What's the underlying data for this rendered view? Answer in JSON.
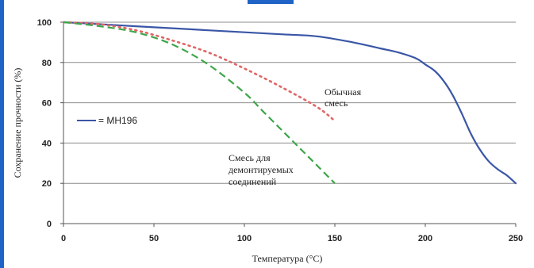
{
  "colors": {
    "accent_border": "#1f63c6",
    "blue_series": "#3a56a6",
    "red_series": "#e06666",
    "green_series": "#3fa64a",
    "grid": "#8c8c8c"
  },
  "chart_data": {
    "type": "line",
    "xlabel": "Температура (°C)",
    "ylabel": "Сохранение прочности (%)",
    "xlim": [
      0,
      250
    ],
    "ylim": [
      0,
      100
    ],
    "xticks": [
      0,
      50,
      100,
      150,
      200,
      250
    ],
    "yticks": [
      0,
      20,
      40,
      60,
      80,
      100
    ],
    "grid": "horizontal",
    "series": [
      {
        "name": "MH196",
        "style": "solid",
        "color": "#3a56a6",
        "x": [
          0,
          20,
          40,
          60,
          80,
          100,
          120,
          140,
          160,
          175,
          185,
          195,
          200,
          205,
          210,
          215,
          220,
          225,
          230,
          235,
          240,
          245,
          250
        ],
        "y": [
          100,
          99,
          98,
          97,
          96,
          95,
          94,
          93,
          90,
          87,
          85,
          82,
          79,
          76,
          71,
          64,
          55,
          45,
          37,
          31,
          27,
          24,
          20
        ]
      },
      {
        "name": "Обычная смесь",
        "style": "dotted",
        "color": "#e06666",
        "x": [
          0,
          20,
          40,
          60,
          80,
          100,
          120,
          140,
          150
        ],
        "y": [
          100,
          99,
          96,
          91,
          85,
          77,
          68,
          58,
          51
        ]
      },
      {
        "name": "Смесь для демонтируемых соединений",
        "style": "dashed",
        "color": "#3fa64a",
        "x": [
          0,
          20,
          40,
          60,
          80,
          100,
          110,
          120,
          130,
          140,
          150
        ],
        "y": [
          100,
          98,
          95,
          89,
          79,
          65,
          56,
          47,
          38,
          29,
          20
        ]
      }
    ],
    "legend": {
      "entry": "= MH196",
      "placement": "left-middle"
    },
    "annotations": [
      {
        "lines": [
          "Обычная",
          "смесь"
        ]
      },
      {
        "lines": [
          "Смесь для",
          "демонтируемых",
          "соединений"
        ]
      }
    ]
  }
}
